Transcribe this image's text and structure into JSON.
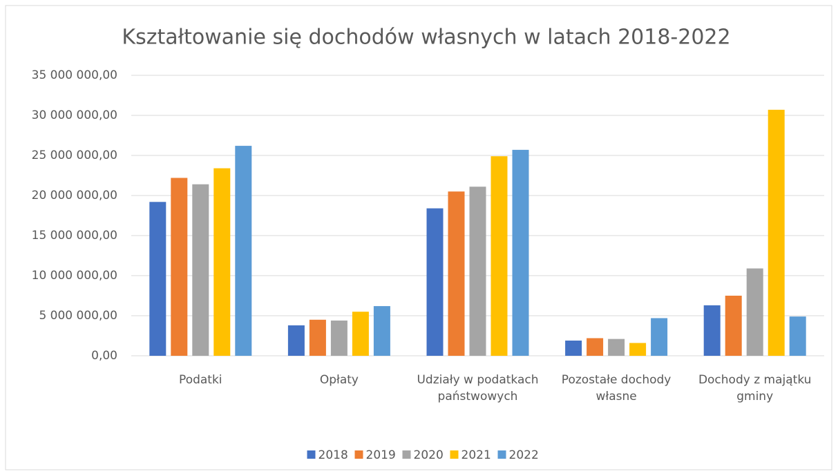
{
  "chart_data": {
    "type": "bar",
    "title": "Kształtowanie się dochodów własnych w latach 2018-2022",
    "categories": [
      "Podatki",
      "Opłaty",
      "Udziały w podatkach państwowych",
      "Pozostałe dochody własne",
      "Dochody z majątku gminy"
    ],
    "series": [
      {
        "name": "2018",
        "color": "#4472c4",
        "values": [
          19200000,
          3800000,
          18400000,
          1900000,
          6300000
        ]
      },
      {
        "name": "2019",
        "color": "#ed7d31",
        "values": [
          22200000,
          4500000,
          20500000,
          2200000,
          7500000
        ]
      },
      {
        "name": "2020",
        "color": "#a5a5a5",
        "values": [
          21400000,
          4400000,
          21100000,
          2100000,
          10900000
        ]
      },
      {
        "name": "2021",
        "color": "#ffc000",
        "values": [
          23400000,
          5500000,
          24900000,
          1600000,
          30700000
        ]
      },
      {
        "name": "2022",
        "color": "#5b9bd5",
        "values": [
          26200000,
          6200000,
          25700000,
          4700000,
          4900000
        ]
      }
    ],
    "ylim": [
      0,
      35000000
    ],
    "yticks": [
      {
        "value": 0,
        "label": "0,00"
      },
      {
        "value": 5000000,
        "label": "5 000 000,00"
      },
      {
        "value": 10000000,
        "label": "10 000 000,00"
      },
      {
        "value": 15000000,
        "label": "15 000 000,00"
      },
      {
        "value": 20000000,
        "label": "20 000 000,00"
      },
      {
        "value": 25000000,
        "label": "25 000 000,00"
      },
      {
        "value": 30000000,
        "label": "30 000 000,00"
      },
      {
        "value": 35000000,
        "label": "35 000 000,00"
      }
    ],
    "grid": true,
    "legend": "bottom"
  }
}
